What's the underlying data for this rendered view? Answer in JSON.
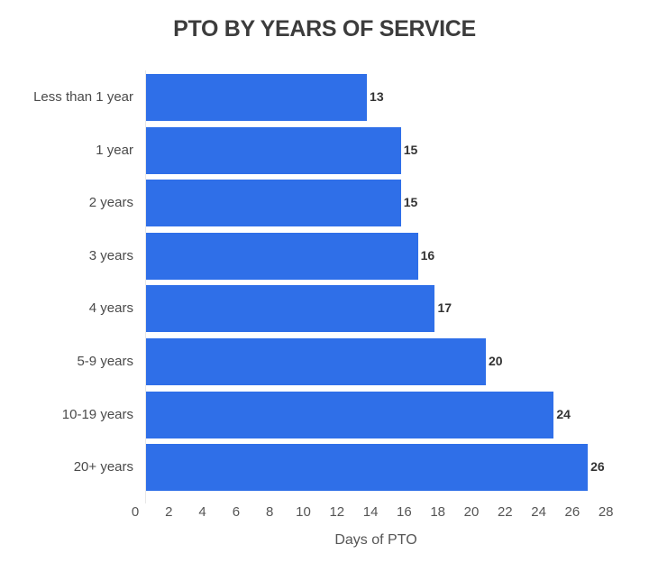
{
  "chart_data": {
    "type": "bar",
    "orientation": "horizontal",
    "title": "PTO BY YEARS OF SERVICE",
    "xlabel": "Days of PTO",
    "ylabel": "",
    "categories": [
      "Less than 1 year",
      "1 year",
      "2 years",
      "3 years",
      "4 years",
      "5-9 years",
      "10-19 years",
      "20+ years"
    ],
    "values": [
      13,
      15,
      15,
      16,
      17,
      20,
      24,
      26
    ],
    "xlim": [
      0,
      28
    ],
    "x_ticks": [
      "0",
      "2",
      "4",
      "6",
      "8",
      "10",
      "12",
      "14",
      "16",
      "18",
      "20",
      "22",
      "24",
      "26",
      "28"
    ],
    "grid": false,
    "legend": null,
    "bar_color": "#2f6fe8",
    "data_labels": true
  },
  "title": "PTO BY YEARS OF SERVICE",
  "xlabel": "Days of PTO",
  "rows": [
    {
      "label": "Less than 1 year",
      "value": "13"
    },
    {
      "label": "1 year",
      "value": "15"
    },
    {
      "label": "2 years",
      "value": "15"
    },
    {
      "label": "3 years",
      "value": "16"
    },
    {
      "label": "4 years",
      "value": "17"
    },
    {
      "label": "5-9 years",
      "value": "20"
    },
    {
      "label": "10-19 years",
      "value": "24"
    },
    {
      "label": "20+ years",
      "value": "26"
    }
  ],
  "ticks": [
    "0",
    "2",
    "4",
    "6",
    "8",
    "10",
    "12",
    "14",
    "16",
    "18",
    "20",
    "22",
    "24",
    "26",
    "28"
  ]
}
